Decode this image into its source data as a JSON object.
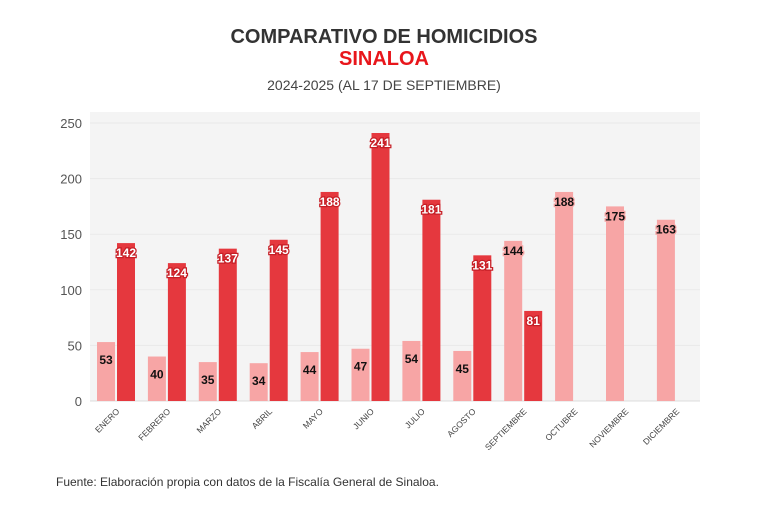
{
  "chart_data": {
    "type": "bar",
    "title": "COMPARATIVO DE HOMICIDIOS",
    "subtitle_region": "SINALOA",
    "subtitle": "2024-2025 (AL 17 DE SEPTIEMBRE)",
    "categories": [
      "ENERO",
      "FEBRERO",
      "MARZO",
      "ABRIL",
      "MAYO",
      "JUNIO",
      "JULIO",
      "AGOSTO",
      "SEPTIEMBRE",
      "OCTUBRE",
      "NOVIEMBRE",
      "DICIEMBRE"
    ],
    "series": [
      {
        "values": [
          53,
          40,
          35,
          34,
          44,
          47,
          54,
          45,
          144,
          188,
          175,
          163
        ],
        "color": "#f7a5a5"
      },
      {
        "values": [
          142,
          124,
          137,
          145,
          188,
          241,
          181,
          131,
          81,
          null,
          null,
          null
        ],
        "color": "#e5383e"
      }
    ],
    "ylim": [
      0,
      255
    ],
    "yticks": [
      0,
      50,
      100,
      150,
      200,
      250
    ],
    "grid": true,
    "plot_background": "#f4f4f4",
    "legend": "none"
  },
  "source": "Fuente: Elaboración propia con datos de la Fiscalía General de Sinaloa."
}
